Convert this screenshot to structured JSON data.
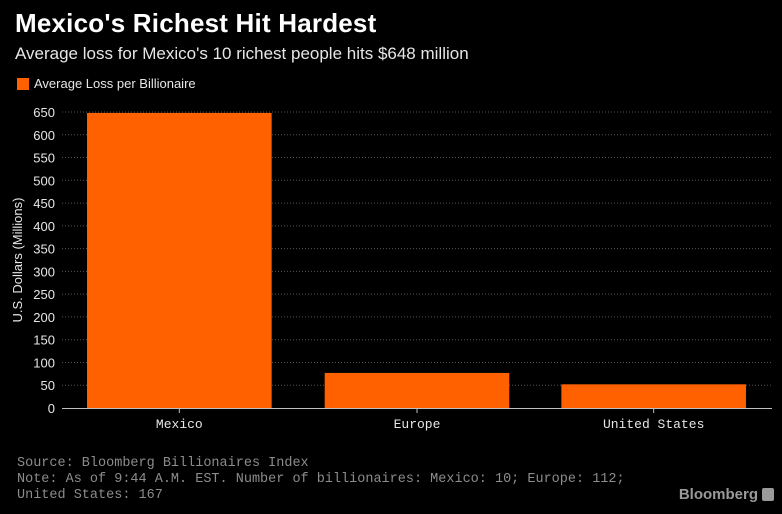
{
  "title": "Mexico's Richest Hit Hardest",
  "subtitle": "Average loss for Mexico's 10 richest people hits $648 million",
  "footer": {
    "source": "Source: Bloomberg Billionaires Index",
    "note": "Note: As of 9:44 A.M. EST. Number of billionaires: Mexico: 10; Europe: 112; United States: 167"
  },
  "brand": "Bloomberg",
  "colors": {
    "bar": "#ff6100",
    "background": "#000000",
    "grid": "#555555"
  },
  "chart_data": {
    "type": "bar",
    "categories": [
      "Mexico",
      "Europe",
      "United States"
    ],
    "series": [
      {
        "name": "Average Loss per Billionaire",
        "values": [
          648,
          77,
          52
        ]
      }
    ],
    "xlabel": "",
    "ylabel": "U.S. Dollars (Millions)",
    "ylim": [
      0,
      650
    ],
    "yticks": [
      0,
      50,
      100,
      150,
      200,
      250,
      300,
      350,
      400,
      450,
      500,
      550,
      600,
      650
    ],
    "grid": true,
    "legend": "top-left"
  }
}
